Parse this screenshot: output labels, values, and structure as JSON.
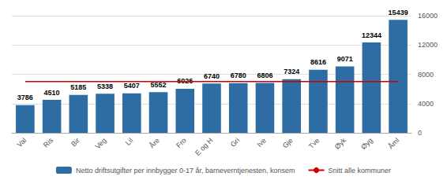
{
  "chart_data": {
    "type": "bar",
    "categories": [
      "Val",
      "Ris",
      "Bir",
      "Veg",
      "Lil",
      "Åre",
      "Fro",
      "E og H",
      "Gri",
      "Ive",
      "Gje",
      "Tve",
      "Øyk",
      "Øyg",
      "Åml"
    ],
    "series": [
      {
        "name": "Netto driftsutgifter per innbygger 0-17 år, barneverntjenesten, konsem",
        "type": "bar",
        "color": "#2E6DA4",
        "data_labels": true,
        "values": [
          3786,
          4510,
          5185,
          5338,
          5407,
          5552,
          6026,
          6740,
          6780,
          6806,
          7324,
          8616,
          9071,
          12344,
          15439
        ]
      },
      {
        "name": "Snitt alle kommuner",
        "type": "line",
        "color": "#CC0000",
        "values": [
          7000,
          7000,
          7000,
          7000,
          7000,
          7000,
          7000,
          7000,
          7000,
          7000,
          7000,
          7000,
          7000,
          7000,
          7000
        ]
      }
    ],
    "ylim": [
      0,
      16000
    ],
    "yticks": [
      0,
      4000,
      8000,
      12000,
      16000
    ],
    "grid": true,
    "legend": "bottom"
  }
}
